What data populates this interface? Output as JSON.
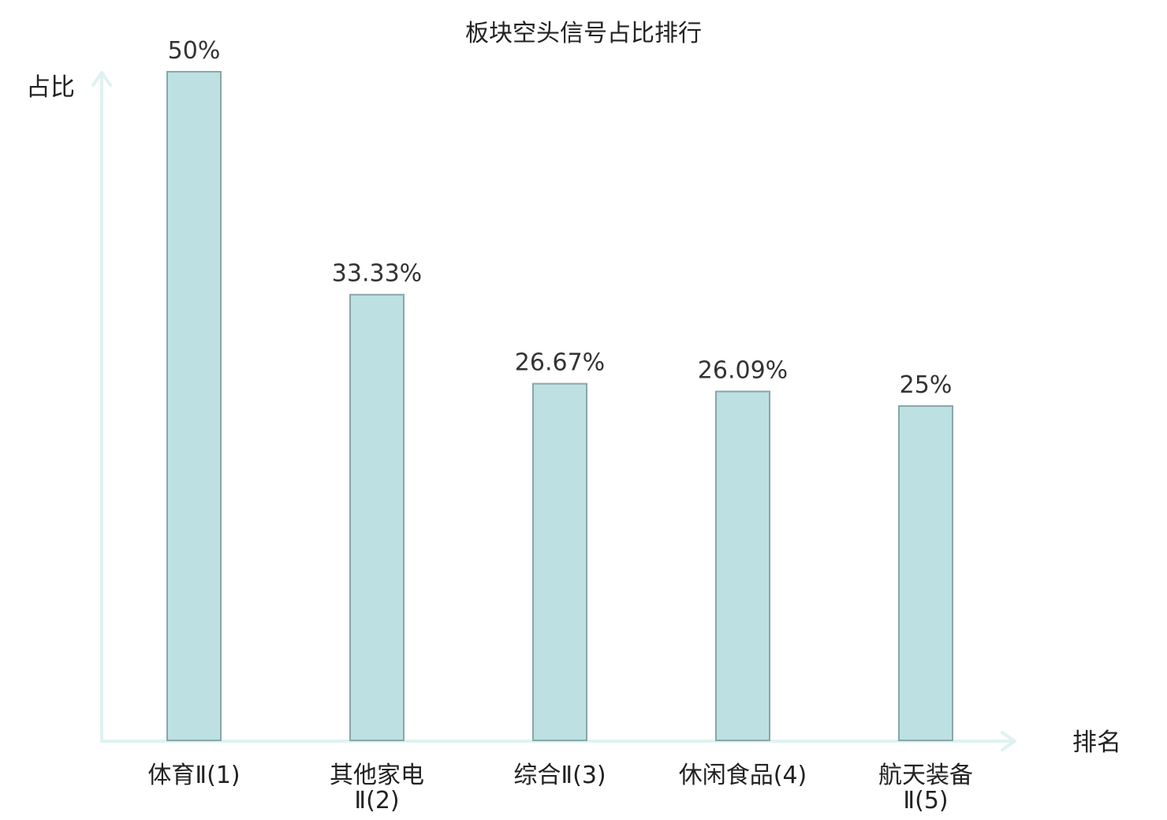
{
  "chart_data": {
    "type": "bar",
    "title": "板块空头信号占比排行",
    "ylabel": "占比",
    "xlabel": "排名",
    "categories": [
      [
        "体育Ⅱ(1)"
      ],
      [
        "其他家电",
        "Ⅱ(2)"
      ],
      [
        "综合Ⅱ(3)"
      ],
      [
        "休闲食品(4)"
      ],
      [
        "航天装备",
        "Ⅱ(5)"
      ]
    ],
    "values": [
      50,
      33.33,
      26.67,
      26.09,
      25
    ],
    "value_labels": [
      "50%",
      "33.33%",
      "26.67%",
      "26.09%",
      "25%"
    ],
    "highlight_index": 2,
    "ylim": [
      0,
      50
    ],
    "grid": false,
    "legend": "none"
  },
  "colors": {
    "bar_fill": "#bde1e3",
    "bar_stroke": "#8aa6a8",
    "axis": "#dff2f0",
    "highlight_label": "#d42020",
    "label": "#222222"
  }
}
